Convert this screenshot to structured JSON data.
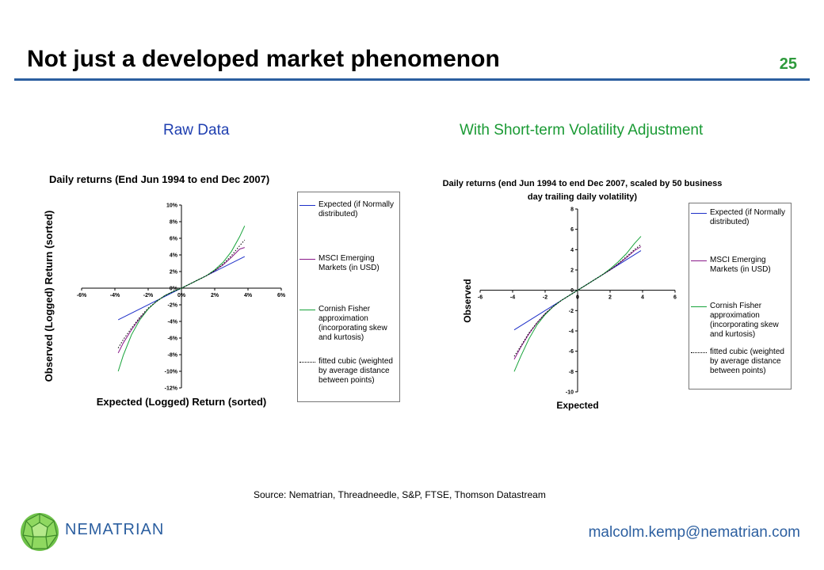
{
  "slide": {
    "title": "Not just a developed market phenomenon",
    "number": "25",
    "subhead_left": "Raw Data",
    "subhead_right": "With Short-term Volatility Adjustment",
    "source": "Source: Nematrian, Threadneedle, S&P, FTSE, Thomson Datastream",
    "brand": "NEMATRIAN",
    "email": "malcolm.kemp@nematrian.com",
    "logo_icon": "green-polyhedron-icon"
  },
  "colors": {
    "expected": "#1c2ec8",
    "msci": "#8a1a8a",
    "cornish": "#17a33a",
    "cubic": "#000000",
    "rule": "#2c5fa0"
  },
  "legend": [
    {
      "key": "expected",
      "label": "Expected (if Normally distributed)"
    },
    {
      "key": "msci",
      "label": "MSCI Emerging Markets (in USD)"
    },
    {
      "key": "cornish",
      "label": "Cornish Fisher approximation (incorporating skew and kurtosis)"
    },
    {
      "key": "cubic",
      "label": "fitted cubic (weighted by average distance between points)"
    }
  ],
  "chart_data": [
    {
      "type": "line",
      "title": "Daily returns (End Jun 1994 to end Dec 2007)",
      "xlabel": "Expected (Logged) Return (sorted)",
      "ylabel": "Observed (Logged) Return (sorted)",
      "xlim": [
        -6,
        6
      ],
      "ylim": [
        -12,
        10
      ],
      "x_ticks": [
        "-6%",
        "-4%",
        "-2%",
        "0%",
        "2%",
        "4%",
        "6%"
      ],
      "y_ticks": [
        "10%",
        "8%",
        "6%",
        "4%",
        "2%",
        "0%",
        "-2%",
        "-4%",
        "-6%",
        "-8%",
        "-10%",
        "-12%"
      ],
      "legend_position": "right",
      "series": [
        {
          "key": "expected",
          "x": [
            -3.8,
            3.8
          ],
          "y": [
            -3.8,
            3.8
          ]
        },
        {
          "key": "msci",
          "x": [
            -3.8,
            -3.5,
            -3,
            -2.5,
            -2,
            -1.5,
            -1,
            -0.5,
            0,
            0.5,
            1,
            1.5,
            2,
            2.5,
            3,
            3.5,
            3.8
          ],
          "y": [
            -7.8,
            -6.6,
            -5.0,
            -3.6,
            -2.5,
            -1.6,
            -0.9,
            -0.4,
            0,
            0.5,
            1.0,
            1.5,
            2.1,
            2.8,
            3.7,
            4.7,
            4.9
          ]
        },
        {
          "key": "cornish",
          "x": [
            -3.8,
            -3.5,
            -3,
            -2.5,
            -2,
            -1.5,
            -1,
            -0.5,
            0,
            0.5,
            1,
            1.5,
            2,
            2.5,
            3,
            3.5,
            3.8
          ],
          "y": [
            -10.0,
            -8.1,
            -5.6,
            -3.8,
            -2.5,
            -1.6,
            -0.9,
            -0.4,
            0,
            0.5,
            1.0,
            1.5,
            2.2,
            3.1,
            4.4,
            6.2,
            7.5
          ]
        },
        {
          "key": "cubic",
          "x": [
            -3.8,
            -3.5,
            -3,
            -2.5,
            -2,
            -1.5,
            -1,
            -0.5,
            0,
            0.5,
            1,
            1.5,
            2,
            2.5,
            3,
            3.5,
            3.8
          ],
          "y": [
            -7.2,
            -6.2,
            -4.8,
            -3.5,
            -2.4,
            -1.6,
            -0.9,
            -0.4,
            0,
            0.5,
            1.0,
            1.5,
            2.1,
            2.9,
            3.9,
            5.1,
            5.8
          ]
        }
      ]
    },
    {
      "type": "line",
      "title": "Daily returns (end Jun 1994 to end Dec 2007, scaled by 50 business day trailing daily volatility)",
      "xlabel": "Expected",
      "ylabel": "Observed",
      "xlim": [
        -6,
        6
      ],
      "ylim": [
        -10,
        8
      ],
      "x_ticks": [
        "-6",
        "-4",
        "-2",
        "0",
        "2",
        "4",
        "6"
      ],
      "y_ticks": [
        "8",
        "6",
        "4",
        "2",
        "0",
        "-2",
        "-4",
        "-6",
        "-8",
        "-10"
      ],
      "legend_position": "right",
      "series": [
        {
          "key": "expected",
          "x": [
            -3.9,
            3.9
          ],
          "y": [
            -3.9,
            3.9
          ]
        },
        {
          "key": "msci",
          "x": [
            -3.9,
            -3.5,
            -3,
            -2.5,
            -2,
            -1.5,
            -1,
            -0.5,
            0,
            0.5,
            1,
            1.5,
            2,
            2.5,
            3,
            3.5,
            3.9
          ],
          "y": [
            -6.8,
            -5.6,
            -4.3,
            -3.2,
            -2.3,
            -1.6,
            -1.0,
            -0.5,
            0,
            0.5,
            1.0,
            1.5,
            2.0,
            2.6,
            3.2,
            3.9,
            4.3
          ]
        },
        {
          "key": "cornish",
          "x": [
            -3.9,
            -3.5,
            -3,
            -2.5,
            -2,
            -1.5,
            -1,
            -0.5,
            0,
            0.5,
            1,
            1.5,
            2,
            2.5,
            3,
            3.5,
            3.9
          ],
          "y": [
            -8.0,
            -6.5,
            -4.8,
            -3.4,
            -2.4,
            -1.6,
            -1.0,
            -0.5,
            0,
            0.5,
            1.0,
            1.5,
            2.1,
            2.8,
            3.6,
            4.6,
            5.3
          ]
        },
        {
          "key": "cubic",
          "x": [
            -3.9,
            -3.5,
            -3,
            -2.5,
            -2,
            -1.5,
            -1,
            -0.5,
            0,
            0.5,
            1,
            1.5,
            2,
            2.5,
            3,
            3.5,
            3.9
          ],
          "y": [
            -6.5,
            -5.5,
            -4.2,
            -3.2,
            -2.3,
            -1.6,
            -1.0,
            -0.5,
            0,
            0.5,
            1.0,
            1.5,
            2.0,
            2.6,
            3.3,
            4.0,
            4.5
          ]
        }
      ]
    }
  ]
}
